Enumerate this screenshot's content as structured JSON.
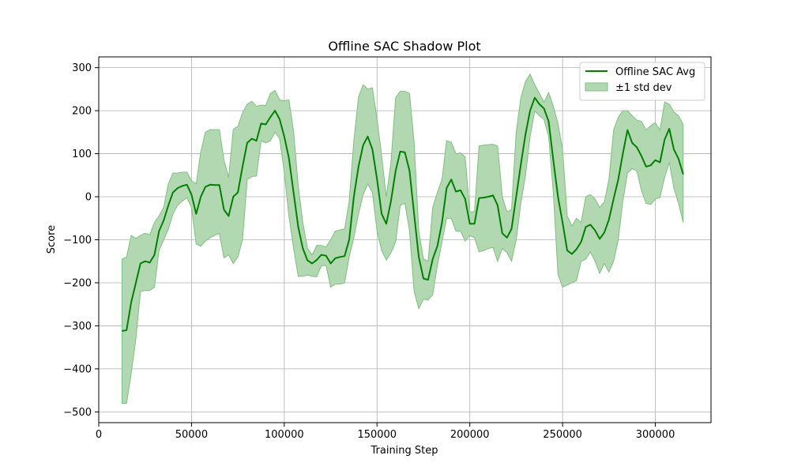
{
  "chart_data": {
    "type": "line",
    "title": "Offline SAC Shadow Plot",
    "xlabel": "Training Step",
    "ylabel": "Score",
    "xlim": [
      0,
      330000
    ],
    "ylim": [
      -525,
      325
    ],
    "x_ticks": [
      0,
      50000,
      100000,
      150000,
      200000,
      250000,
      300000
    ],
    "y_ticks": [
      -500,
      -400,
      -300,
      -200,
      -100,
      0,
      100,
      200,
      300
    ],
    "grid": true,
    "legend_position": "top-right",
    "colors": {
      "line": "#008000",
      "band": "#b2d8b2",
      "band_edge": "#7fbf7f"
    },
    "series": [
      {
        "name": "Offline SAC Avg",
        "kind": "line"
      },
      {
        "name": "±1 std dev",
        "kind": "band"
      }
    ],
    "x": [
      12500,
      15000,
      17500,
      20000,
      22500,
      25000,
      27500,
      30000,
      32500,
      35000,
      37500,
      40000,
      42500,
      45000,
      47500,
      50000,
      52500,
      55000,
      57500,
      60000,
      62500,
      65000,
      67500,
      70000,
      72500,
      75000,
      77500,
      80000,
      82500,
      85000,
      87500,
      90000,
      92500,
      95000,
      97500,
      100000,
      102500,
      105000,
      107500,
      110000,
      112500,
      115000,
      117500,
      120000,
      122500,
      125000,
      127500,
      130000,
      132500,
      135000,
      137500,
      140000,
      142500,
      145000,
      147500,
      150000,
      152500,
      155000,
      157500,
      160000,
      162500,
      165000,
      167500,
      170000,
      172500,
      175000,
      177500,
      180000,
      182500,
      185000,
      187500,
      190000,
      192500,
      195000,
      197500,
      200000,
      202500,
      205000,
      207500,
      210000,
      212500,
      215000,
      217500,
      220000,
      222500,
      225000,
      227500,
      230000,
      232500,
      235000,
      237500,
      240000,
      242500,
      245000,
      247500,
      250000,
      252500,
      255000,
      257500,
      260000,
      262500,
      265000,
      267500,
      270000,
      272500,
      275000,
      277500,
      280000,
      282500,
      285000,
      287500,
      290000,
      292500,
      295000,
      297500,
      300000,
      302500,
      305000,
      307500,
      310000,
      312500,
      315000
    ],
    "mean": [
      -312,
      -310,
      -245,
      -200,
      -155,
      -150,
      -153,
      -135,
      -80,
      -55,
      -20,
      10,
      20,
      25,
      28,
      5,
      -40,
      0,
      23,
      28,
      27,
      27,
      -30,
      -45,
      0,
      10,
      70,
      125,
      135,
      130,
      170,
      168,
      185,
      200,
      180,
      140,
      90,
      10,
      -70,
      -120,
      -148,
      -155,
      -147,
      -135,
      -137,
      -155,
      -143,
      -140,
      -138,
      -100,
      0,
      70,
      120,
      140,
      110,
      40,
      -40,
      -63,
      -10,
      60,
      105,
      103,
      60,
      -40,
      -140,
      -190,
      -193,
      -145,
      -115,
      -60,
      20,
      40,
      12,
      15,
      -5,
      -63,
      -63,
      -3,
      -2,
      0,
      3,
      -20,
      -85,
      -95,
      -75,
      0,
      75,
      145,
      200,
      230,
      215,
      205,
      175,
      85,
      0,
      -60,
      -125,
      -133,
      -122,
      -105,
      -70,
      -65,
      -78,
      -98,
      -83,
      -53,
      -5,
      40,
      100,
      155,
      125,
      115,
      95,
      70,
      73,
      85,
      80,
      133,
      158,
      110,
      88,
      52
    ],
    "upper": [
      -145,
      -140,
      -90,
      -97,
      -90,
      -85,
      -88,
      -60,
      -45,
      -25,
      30,
      55,
      55,
      57,
      57,
      37,
      30,
      105,
      150,
      156,
      156,
      156,
      85,
      45,
      157,
      163,
      195,
      215,
      222,
      210,
      213,
      212,
      240,
      247,
      225,
      223,
      225,
      152,
      25,
      -60,
      -120,
      -135,
      -113,
      -113,
      -117,
      -100,
      -80,
      -77,
      -75,
      -10,
      130,
      232,
      260,
      250,
      253,
      180,
      95,
      0,
      80,
      230,
      245,
      245,
      240,
      125,
      -80,
      -145,
      -150,
      -25,
      10,
      40,
      130,
      127,
      100,
      102,
      92,
      -35,
      -35,
      118,
      120,
      121,
      122,
      118,
      0,
      -35,
      -30,
      150,
      230,
      268,
      285,
      260,
      240,
      220,
      242,
      210,
      170,
      110,
      -45,
      -68,
      -50,
      -60,
      0,
      5,
      -5,
      -25,
      -12,
      40,
      155,
      185,
      200,
      200,
      188,
      178,
      175,
      155,
      165,
      172,
      155,
      220,
      215,
      197,
      188,
      168
    ],
    "lower": [
      -480,
      -480,
      -410,
      -330,
      -220,
      -218,
      -218,
      -210,
      -125,
      -100,
      -75,
      -40,
      -20,
      -10,
      -2,
      -25,
      -110,
      -115,
      -103,
      -95,
      -90,
      -85,
      -142,
      -135,
      -155,
      -140,
      -100,
      40,
      47,
      48,
      130,
      125,
      130,
      150,
      135,
      57,
      -45,
      -120,
      -185,
      -185,
      -182,
      -185,
      -186,
      -160,
      -160,
      -210,
      -203,
      -203,
      -200,
      -140,
      -95,
      -40,
      5,
      30,
      10,
      -80,
      -125,
      -147,
      -130,
      -105,
      -20,
      -15,
      -80,
      -220,
      -260,
      -238,
      -240,
      -228,
      -160,
      -105,
      -50,
      -50,
      -80,
      -80,
      -103,
      -90,
      -95,
      -128,
      -125,
      -120,
      -118,
      -150,
      -120,
      -130,
      -150,
      -100,
      -15,
      50,
      140,
      200,
      188,
      180,
      140,
      10,
      -180,
      -210,
      -205,
      -200,
      -195,
      -150,
      -145,
      -128,
      -150,
      -178,
      -155,
      -175,
      -150,
      -100,
      -10,
      55,
      65,
      60,
      15,
      -15,
      -18,
      -5,
      -2,
      45,
      80,
      20,
      -15,
      -60
    ]
  }
}
